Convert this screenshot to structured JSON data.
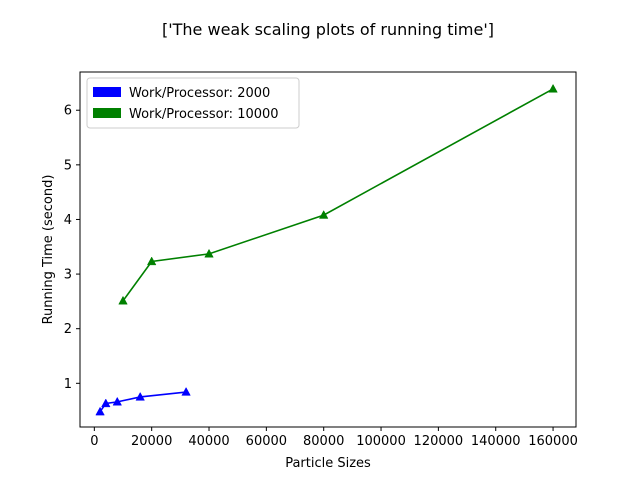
{
  "chart_data": {
    "type": "line",
    "title": "['The weak scaling plots of running time']",
    "xlabel": "Particle Sizes",
    "ylabel": "Running Time (second)",
    "xlim": [
      -5000,
      168000
    ],
    "ylim": [
      0.2,
      6.7
    ],
    "xticks": [
      0,
      20000,
      40000,
      60000,
      80000,
      100000,
      120000,
      140000,
      160000
    ],
    "xtick_labels": [
      "0",
      "20000",
      "40000",
      "60000",
      "80000",
      "100000",
      "120000",
      "140000",
      "160000"
    ],
    "yticks": [
      1,
      2,
      3,
      4,
      5,
      6
    ],
    "ytick_labels": [
      "1",
      "2",
      "3",
      "4",
      "5",
      "6"
    ],
    "grid": false,
    "legend_position": "top-left",
    "marker": "triangle",
    "series": [
      {
        "name": "Work/Processor: 2000",
        "color": "#0000ff",
        "x": [
          2000,
          4000,
          8000,
          16000,
          32000
        ],
        "y": [
          0.48,
          0.63,
          0.66,
          0.75,
          0.84
        ]
      },
      {
        "name": "Work/Processor: 10000",
        "color": "#008000",
        "x": [
          10000,
          20000,
          40000,
          80000,
          160000
        ],
        "y": [
          2.51,
          3.23,
          3.37,
          4.08,
          6.39
        ]
      }
    ]
  }
}
